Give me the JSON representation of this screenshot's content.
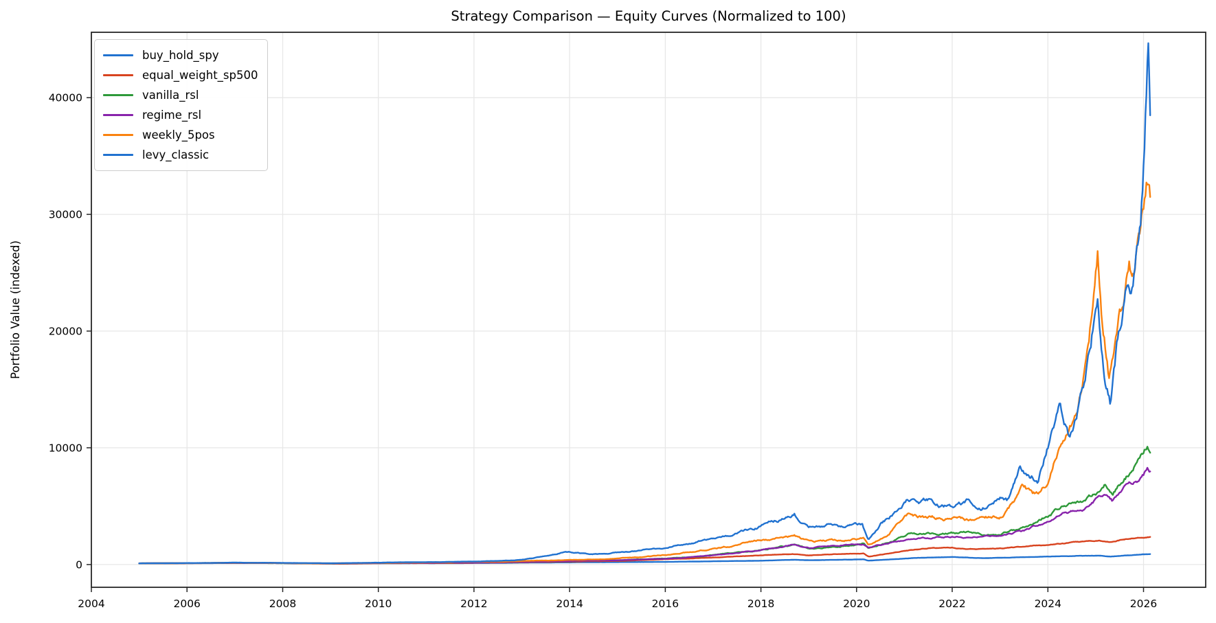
{
  "figure": {
    "background": "#ffffff",
    "grid_color": "#e7e7e7",
    "spine_color": "#262626",
    "text_color": "#000000"
  },
  "chart_data": {
    "type": "line",
    "title": "Strategy Comparison — Equity Curves (Normalized to 100)",
    "xlabel": "",
    "ylabel": "Portfolio Value (indexed)",
    "xlim": [
      2004,
      2027.3
    ],
    "ylim": [
      -1950,
      45600
    ],
    "x_ticks": [
      2004,
      2006,
      2008,
      2010,
      2012,
      2014,
      2016,
      2018,
      2020,
      2022,
      2024,
      2026
    ],
    "x_tick_labels": [
      "2004",
      "2006",
      "2008",
      "2010",
      "2012",
      "2014",
      "2016",
      "2018",
      "2020",
      "2022",
      "2024",
      "2026"
    ],
    "y_ticks": [
      0,
      10000,
      20000,
      30000,
      40000
    ],
    "y_tick_labels": [
      "0",
      "10000",
      "20000",
      "30000",
      "40000"
    ],
    "grid": true,
    "legend_position": "upper left",
    "series": [
      {
        "name": "buy_hold_spy",
        "color": "#2172d0",
        "noise": 0.01,
        "points": [
          [
            2005,
            100
          ],
          [
            2006,
            112
          ],
          [
            2007,
            125
          ],
          [
            2007.8,
            130
          ],
          [
            2009.2,
            80
          ],
          [
            2010,
            110
          ],
          [
            2011.5,
            115
          ],
          [
            2012,
            125
          ],
          [
            2013,
            155
          ],
          [
            2014,
            190
          ],
          [
            2015,
            205
          ],
          [
            2016,
            230
          ],
          [
            2017,
            280
          ],
          [
            2018,
            330
          ],
          [
            2018.7,
            410
          ],
          [
            2019,
            360
          ],
          [
            2019.8,
            420
          ],
          [
            2020.15,
            440
          ],
          [
            2020.25,
            330
          ],
          [
            2020.6,
            420
          ],
          [
            2021,
            520
          ],
          [
            2021.5,
            605
          ],
          [
            2022,
            640
          ],
          [
            2022.5,
            560
          ],
          [
            2022.75,
            540
          ],
          [
            2023,
            570
          ],
          [
            2023.5,
            620
          ],
          [
            2024,
            680
          ],
          [
            2024.5,
            730
          ],
          [
            2025.1,
            760
          ],
          [
            2025.3,
            700
          ],
          [
            2025.7,
            790
          ],
          [
            2026,
            860
          ],
          [
            2026.15,
            880
          ]
        ]
      },
      {
        "name": "equal_weight_sp500",
        "color": "#d8431f",
        "noise": 0.012,
        "points": [
          [
            2005,
            100
          ],
          [
            2006,
            115
          ],
          [
            2007,
            135
          ],
          [
            2007.8,
            140
          ],
          [
            2009.2,
            65
          ],
          [
            2010,
            115
          ],
          [
            2011.5,
            125
          ],
          [
            2012,
            150
          ],
          [
            2013,
            200
          ],
          [
            2014,
            260
          ],
          [
            2015,
            300
          ],
          [
            2016,
            450
          ],
          [
            2017,
            600
          ],
          [
            2018,
            800
          ],
          [
            2018.7,
            900
          ],
          [
            2019,
            800
          ],
          [
            2019.8,
            920
          ],
          [
            2020.15,
            950
          ],
          [
            2020.25,
            680
          ],
          [
            2020.6,
            900
          ],
          [
            2021,
            1180
          ],
          [
            2021.5,
            1400
          ],
          [
            2022,
            1420
          ],
          [
            2022.5,
            1300
          ],
          [
            2023,
            1400
          ],
          [
            2023.5,
            1520
          ],
          [
            2024,
            1700
          ],
          [
            2024.5,
            1900
          ],
          [
            2025,
            2050
          ],
          [
            2025.3,
            1960
          ],
          [
            2025.5,
            2120
          ],
          [
            2026,
            2380
          ],
          [
            2026.15,
            2450
          ]
        ]
      },
      {
        "name": "vanilla_rsl",
        "color": "#2e9939",
        "noise": 0.02,
        "points": [
          [
            2005,
            100
          ],
          [
            2006,
            118
          ],
          [
            2007,
            145
          ],
          [
            2009,
            85
          ],
          [
            2010,
            130
          ],
          [
            2012,
            185
          ],
          [
            2013,
            240
          ],
          [
            2014,
            310
          ],
          [
            2015,
            380
          ],
          [
            2016,
            520
          ],
          [
            2017,
            800
          ],
          [
            2018,
            1300
          ],
          [
            2018.7,
            1650
          ],
          [
            2019,
            1350
          ],
          [
            2019.8,
            1650
          ],
          [
            2020.15,
            1750
          ],
          [
            2020.25,
            1300
          ],
          [
            2020.6,
            1800
          ],
          [
            2021.07,
            2600
          ],
          [
            2021.5,
            2680
          ],
          [
            2022,
            2680
          ],
          [
            2022.3,
            2760
          ],
          [
            2022.7,
            2500
          ],
          [
            2023,
            2620
          ],
          [
            2023.5,
            3100
          ],
          [
            2024,
            4300
          ],
          [
            2024.25,
            4900
          ],
          [
            2024.5,
            5300
          ],
          [
            2024.8,
            5600
          ],
          [
            2025.05,
            6300
          ],
          [
            2025.2,
            7000
          ],
          [
            2025.35,
            6300
          ],
          [
            2025.6,
            7600
          ],
          [
            2025.8,
            8500
          ],
          [
            2026,
            9500
          ],
          [
            2026.08,
            10200
          ],
          [
            2026.15,
            9800
          ]
        ]
      },
      {
        "name": "regime_rsl",
        "color": "#8823ab",
        "noise": 0.018,
        "points": [
          [
            2005,
            100
          ],
          [
            2006,
            116
          ],
          [
            2007,
            142
          ],
          [
            2009,
            95
          ],
          [
            2010,
            132
          ],
          [
            2012,
            180
          ],
          [
            2013,
            235
          ],
          [
            2014,
            300
          ],
          [
            2015,
            370
          ],
          [
            2016,
            500
          ],
          [
            2017,
            780
          ],
          [
            2018,
            1250
          ],
          [
            2018.7,
            1730
          ],
          [
            2019,
            1450
          ],
          [
            2019.8,
            1700
          ],
          [
            2020.15,
            1780
          ],
          [
            2020.25,
            1500
          ],
          [
            2020.6,
            1800
          ],
          [
            2021.07,
            2170
          ],
          [
            2021.5,
            2300
          ],
          [
            2022,
            2370
          ],
          [
            2022.5,
            2400
          ],
          [
            2023,
            2450
          ],
          [
            2023.5,
            2900
          ],
          [
            2024,
            3800
          ],
          [
            2024.3,
            4400
          ],
          [
            2024.5,
            4600
          ],
          [
            2024.8,
            5000
          ],
          [
            2025.05,
            5700
          ],
          [
            2025.2,
            6000
          ],
          [
            2025.35,
            5400
          ],
          [
            2025.6,
            6400
          ],
          [
            2025.8,
            7000
          ],
          [
            2026,
            7500
          ],
          [
            2026.08,
            8100
          ],
          [
            2026.15,
            7900
          ]
        ]
      },
      {
        "name": "weekly_5pos",
        "color": "#fa820f",
        "noise": 0.025,
        "points": [
          [
            2005,
            100
          ],
          [
            2006,
            120
          ],
          [
            2007,
            155
          ],
          [
            2009,
            100
          ],
          [
            2010,
            150
          ],
          [
            2012,
            225
          ],
          [
            2013,
            300
          ],
          [
            2014,
            385
          ],
          [
            2015,
            520
          ],
          [
            2016,
            820
          ],
          [
            2017,
            1400
          ],
          [
            2018,
            2100
          ],
          [
            2018.7,
            2470
          ],
          [
            2019,
            1900
          ],
          [
            2019.5,
            2100
          ],
          [
            2020.15,
            2300
          ],
          [
            2020.25,
            1700
          ],
          [
            2020.6,
            2700
          ],
          [
            2021.07,
            4230
          ],
          [
            2021.5,
            4100
          ],
          [
            2022,
            3940
          ],
          [
            2022.5,
            3700
          ],
          [
            2023,
            4050
          ],
          [
            2023.45,
            6290
          ],
          [
            2023.8,
            5800
          ],
          [
            2024,
            6800
          ],
          [
            2024.2,
            9500
          ],
          [
            2024.4,
            11000
          ],
          [
            2024.6,
            13500
          ],
          [
            2024.8,
            17000
          ],
          [
            2024.95,
            22500
          ],
          [
            2025.04,
            27000
          ],
          [
            2025.15,
            20000
          ],
          [
            2025.28,
            16000
          ],
          [
            2025.45,
            21000
          ],
          [
            2025.6,
            23500
          ],
          [
            2025.7,
            25500
          ],
          [
            2025.8,
            24000
          ],
          [
            2025.9,
            27500
          ],
          [
            2026,
            30000
          ],
          [
            2026.1,
            32600
          ],
          [
            2026.15,
            31500
          ]
        ]
      },
      {
        "name": "levy_classic",
        "color": "#2172d0",
        "noise": 0.025,
        "points": [
          [
            2005,
            100
          ],
          [
            2006,
            125
          ],
          [
            2007,
            165
          ],
          [
            2009,
            110
          ],
          [
            2010,
            165
          ],
          [
            2012,
            255
          ],
          [
            2013,
            420
          ],
          [
            2013.9,
            1100
          ],
          [
            2014.4,
            880
          ],
          [
            2015,
            1000
          ],
          [
            2016,
            1470
          ],
          [
            2017,
            2250
          ],
          [
            2018,
            3300
          ],
          [
            2018.7,
            4350
          ],
          [
            2019,
            3100
          ],
          [
            2019.4,
            3350
          ],
          [
            2019.8,
            3250
          ],
          [
            2020.12,
            3450
          ],
          [
            2020.25,
            2070
          ],
          [
            2020.5,
            3300
          ],
          [
            2020.8,
            4500
          ],
          [
            2021.07,
            5820
          ],
          [
            2021.3,
            5200
          ],
          [
            2021.55,
            5600
          ],
          [
            2021.8,
            5250
          ],
          [
            2022,
            4930
          ],
          [
            2022.3,
            5400
          ],
          [
            2022.55,
            4700
          ],
          [
            2022.8,
            5100
          ],
          [
            2023,
            5600
          ],
          [
            2023.15,
            5400
          ],
          [
            2023.4,
            8230
          ],
          [
            2023.6,
            7900
          ],
          [
            2023.8,
            7350
          ],
          [
            2024.05,
            11000
          ],
          [
            2024.25,
            14200
          ],
          [
            2024.45,
            11500
          ],
          [
            2024.6,
            13000
          ],
          [
            2024.8,
            16500
          ],
          [
            2024.95,
            20500
          ],
          [
            2025.05,
            21500
          ],
          [
            2025.15,
            17000
          ],
          [
            2025.3,
            13800
          ],
          [
            2025.45,
            18500
          ],
          [
            2025.55,
            20000
          ],
          [
            2025.65,
            22500
          ],
          [
            2025.75,
            21000
          ],
          [
            2025.85,
            24500
          ],
          [
            2025.95,
            29000
          ],
          [
            2026.05,
            38500
          ],
          [
            2026.1,
            43300
          ],
          [
            2026.15,
            37500
          ]
        ]
      }
    ]
  }
}
